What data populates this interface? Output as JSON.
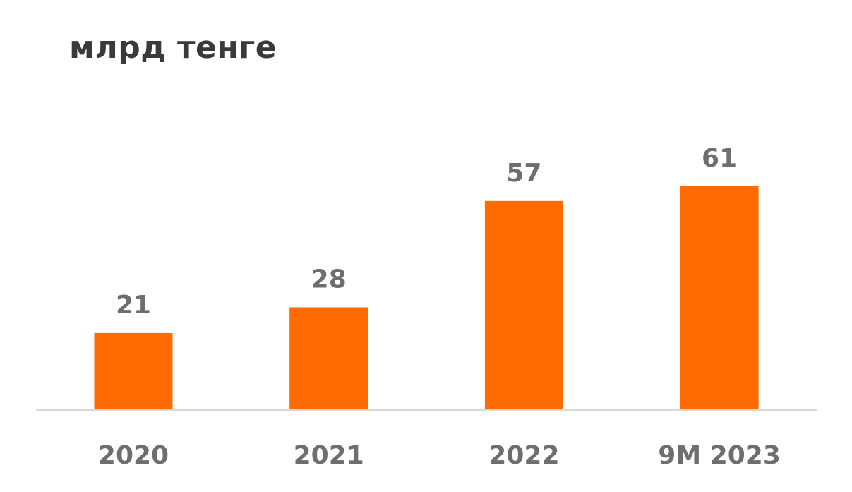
{
  "chart_data": {
    "type": "bar",
    "title": "млрд тенге",
    "categories": [
      "2020",
      "2021",
      "2022",
      "9M 2023"
    ],
    "values": [
      21,
      28,
      57,
      61
    ],
    "xlabel": "",
    "ylabel": "",
    "ylim": [
      0,
      61
    ],
    "grid": false,
    "legend": "none",
    "bar_color": "#FF6B00",
    "axis_color": "#D9D9D9",
    "label_color": "#6E6E6E",
    "title_color": "#3A3A3A"
  }
}
